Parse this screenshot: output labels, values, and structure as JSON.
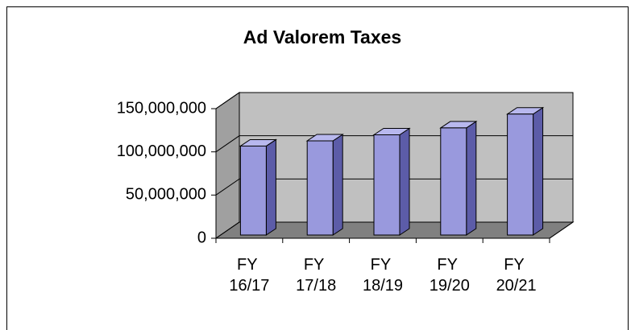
{
  "chart_data": {
    "type": "bar3d",
    "title": "Ad Valorem Taxes",
    "categories": [
      "FY 16/17",
      "FY 17/18",
      "FY 18/19",
      "FY 19/20",
      "FY 20/21"
    ],
    "values": [
      103000000,
      109000000,
      116000000,
      124000000,
      140000000
    ],
    "color": "#9999dd",
    "ylim": [
      0,
      150000000
    ],
    "yticks": [
      0,
      {
        "value": 50000000,
        "label": "50,000,000"
      },
      {
        "value": 100000000,
        "label": "100,000,000"
      },
      {
        "value": 150000000,
        "label": "150,000,000"
      }
    ],
    "grid": true
  }
}
